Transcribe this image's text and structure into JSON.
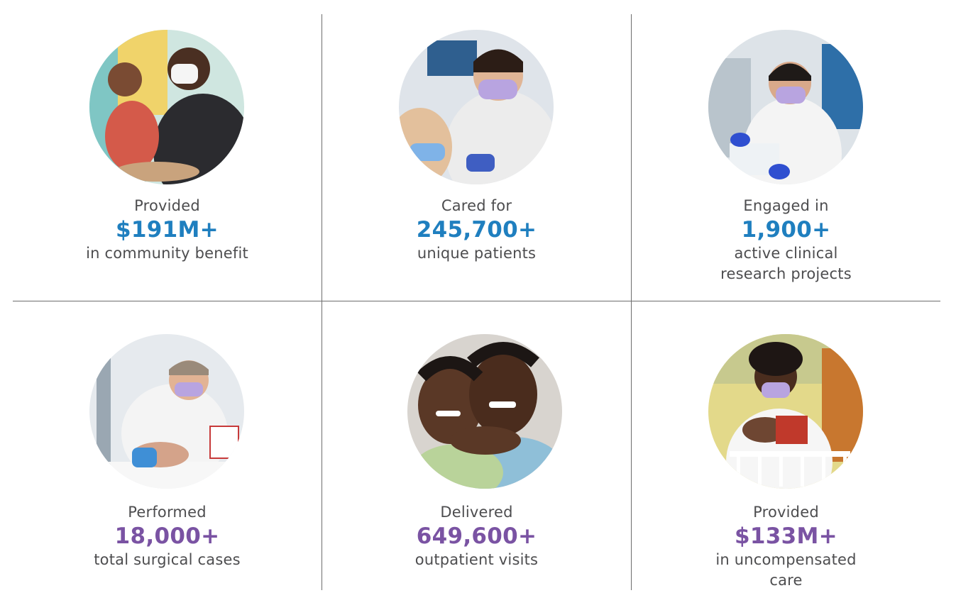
{
  "stats": [
    {
      "intro": "Provided",
      "value": "$191M+",
      "desc": [
        "in community benefit"
      ],
      "photo": "clinician with stethoscope examining toddler"
    },
    {
      "intro": "Cared for",
      "value": "245,700+",
      "desc": [
        "unique patients"
      ],
      "photo": "nurse with mask caring for child"
    },
    {
      "intro": "Engaged in",
      "value": "1,900+",
      "desc": [
        "active clinical",
        "research projects"
      ],
      "photo": "researcher in lab coat with gloves"
    },
    {
      "intro": "Performed",
      "value": "18,000+",
      "desc": [
        "total surgical cases"
      ],
      "photo": "doctor examining infant"
    },
    {
      "intro": "Delivered",
      "value": "649,600+",
      "desc": [
        "outpatient visits"
      ],
      "photo": "two smiling children hugging"
    },
    {
      "intro": "Provided",
      "value": "$133M+",
      "desc": [
        "in uncompensated",
        "care"
      ],
      "photo": "nurse holding newborn baby"
    }
  ],
  "colors": {
    "blue": "#1f7fbf",
    "purple": "#7a53a3",
    "text": "#4d4d4f",
    "divider": "#6d6d6d"
  }
}
